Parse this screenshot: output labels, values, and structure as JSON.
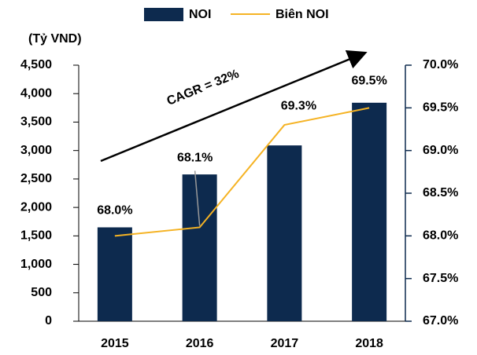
{
  "chart_data": {
    "type": "bar",
    "axis_label": "(Tỷ VND)",
    "annotation": "CAGR = 32%",
    "categories": [
      "2015",
      "2016",
      "2017",
      "2018"
    ],
    "series": [
      {
        "name": "NOI",
        "color": "#0d2a4e",
        "values": [
          1650,
          2580,
          3090,
          3840
        ]
      },
      {
        "name": "Biên NOI",
        "color": "#f5b324",
        "axis": "y2",
        "values": [
          68.0,
          68.1,
          69.3,
          69.5
        ],
        "value_labels": [
          "68.0%",
          "68.1%",
          "69.3%",
          "69.5%"
        ]
      }
    ],
    "ylim": [
      0,
      4500
    ],
    "yticks": [
      0,
      500,
      {
        "value": 1000,
        "label": "1,000"
      },
      {
        "value": 1500,
        "label": "1,500"
      },
      {
        "value": 2000,
        "label": "2,000"
      },
      {
        "value": 2500,
        "label": "2,500"
      },
      {
        "value": 3000,
        "label": "3,000"
      },
      {
        "value": 3500,
        "label": "3,500"
      },
      {
        "value": 4000,
        "label": "4,000"
      },
      {
        "value": 4500,
        "label": "4,500"
      }
    ],
    "y2lim": [
      67.0,
      70.0
    ],
    "y2ticks": [
      {
        "value": 67.0,
        "label": "67.0%"
      },
      {
        "value": 67.5,
        "label": "67.5%"
      },
      {
        "value": 68.0,
        "label": "68.0%"
      },
      {
        "value": 68.5,
        "label": "68.5%"
      },
      {
        "value": 69.0,
        "label": "69.0%"
      },
      {
        "value": 69.5,
        "label": "69.5%"
      },
      {
        "value": 70.0,
        "label": "70.0%"
      }
    ],
    "legend": "top"
  }
}
